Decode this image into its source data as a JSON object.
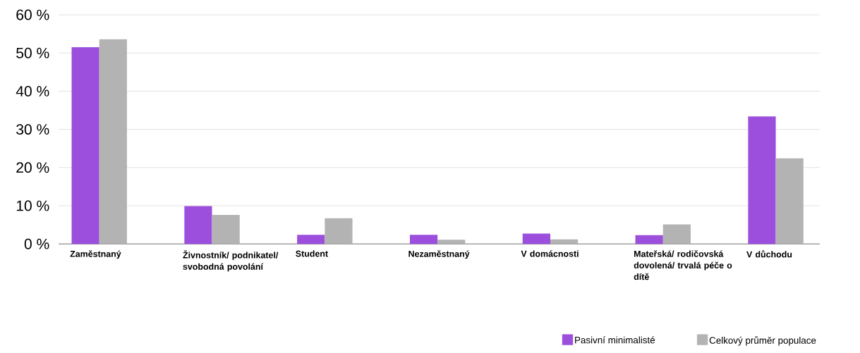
{
  "chart_data": {
    "type": "bar",
    "categories": [
      "Zaměstnaný",
      "Živnostník/ podnikatel/ svobodná povolání",
      "Student",
      "Nezaměstnaný",
      "V domácnosti",
      "Mateřská/ rodičovská dovolená/ trvalá péče o dítě",
      "V důchodu"
    ],
    "series": [
      {
        "name": "Pasivní minimalisté",
        "color": "#9b4fdc",
        "values": [
          51.5,
          9.9,
          2.4,
          2.4,
          2.7,
          2.3,
          33.4
        ]
      },
      {
        "name": "Celkový průměr populace",
        "color": "#b3b3b3",
        "values": [
          53.6,
          7.6,
          6.7,
          1.1,
          1.2,
          5.1,
          22.4
        ]
      }
    ],
    "ylim": [
      0,
      60
    ],
    "yticks": [
      {
        "value": 0,
        "label": "0 %"
      },
      {
        "value": 10,
        "label": "10 %"
      },
      {
        "value": 20,
        "label": "20 %"
      },
      {
        "value": 30,
        "label": "30 %"
      },
      {
        "value": 40,
        "label": "40 %"
      },
      {
        "value": 50,
        "label": "50 %"
      },
      {
        "value": 60,
        "label": "60 %"
      }
    ],
    "grid": "y",
    "legend": "bottom right"
  }
}
